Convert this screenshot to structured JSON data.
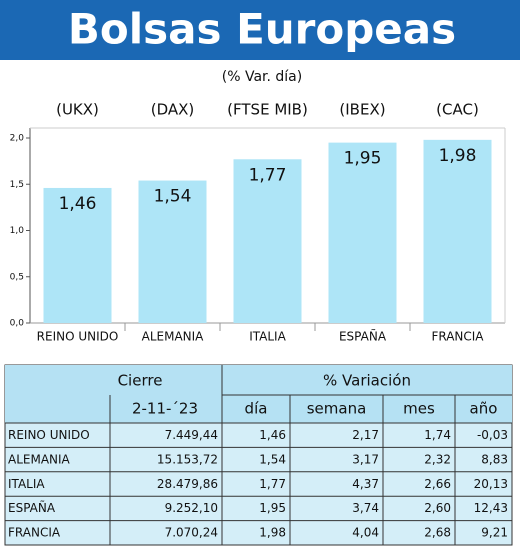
{
  "chart_data": {
    "type": "bar",
    "title": "Bolsas Europeas",
    "subtitle": "(% Var. día)",
    "categories": [
      "REINO UNIDO",
      "ALEMANIA",
      "ITALIA",
      "ESPAÑA",
      "FRANCIA"
    ],
    "index_labels": [
      "(UKX)",
      "(DAX)",
      "(FTSE MIB)",
      "(IBEX)",
      "(CAC)"
    ],
    "values": [
      1.46,
      1.54,
      1.77,
      1.95,
      1.98
    ],
    "value_labels": [
      "1,46",
      "1,54",
      "1,77",
      "1,95",
      "1,98"
    ],
    "color": "#aee5f7",
    "ylim": [
      0,
      2
    ],
    "yticks": [
      {
        "value": 0,
        "label": "0,0"
      },
      {
        "value": 0.5,
        "label": "0,5"
      },
      {
        "value": 1,
        "label": "1,0"
      },
      {
        "value": 1.5,
        "label": "1,5"
      },
      {
        "value": 2,
        "label": "2,0"
      }
    ]
  },
  "table": {
    "header": [
      "Cierre",
      "% Variación"
    ],
    "subheader": [
      "2-11-´23",
      "día",
      "semana",
      "mes",
      "año"
    ],
    "rows": [
      [
        "REINO UNIDO",
        "7.449,44",
        "1,46",
        "2,17",
        "1,74",
        "-0,03"
      ],
      [
        "ALEMANIA",
        "15.153,72",
        "1,54",
        "3,17",
        "2,32",
        "8,83"
      ],
      [
        "ITALIA",
        "28.479,86",
        "1,77",
        "4,37",
        "2,66",
        "20,13"
      ],
      [
        "ESPAÑA",
        "9.252,10",
        "1,95",
        "3,74",
        "2,60",
        "12,43"
      ],
      [
        "FRANCIA",
        "7.070,24",
        "1,98",
        "4,04",
        "2,68",
        "9,21"
      ]
    ]
  }
}
